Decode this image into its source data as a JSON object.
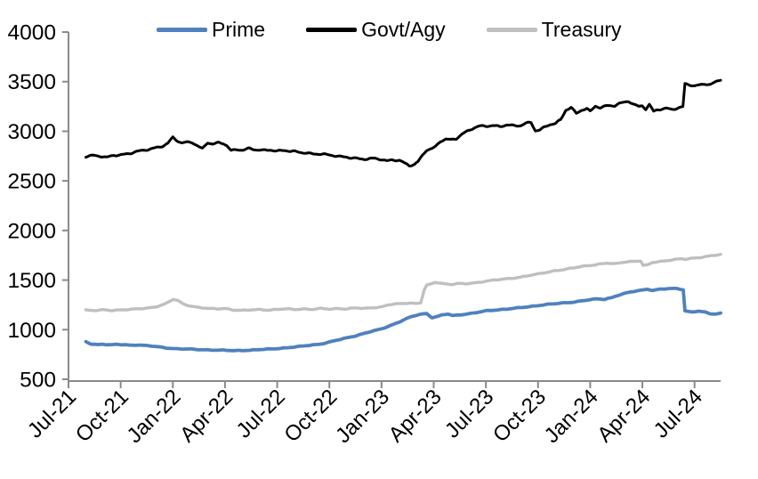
{
  "chart_data": {
    "type": "line",
    "title": "",
    "xlabel": "",
    "ylabel": "",
    "grid": false,
    "legend_position": "top",
    "axis_color": "#8a8a8a",
    "text_color": "#000000",
    "ylim": [
      500,
      4000
    ],
    "y_ticks": [
      "500",
      "1000",
      "1500",
      "2000",
      "2500",
      "3000",
      "3500",
      "4000"
    ],
    "y_tick_values": [
      500,
      1000,
      1500,
      2000,
      2500,
      3000,
      3500,
      4000
    ],
    "x_tick_labels": [
      "Jul-21",
      "Oct-21",
      "Jan-22",
      "Apr-22",
      "Jul-22",
      "Oct-22",
      "Jan-23",
      "Apr-23",
      "Jul-23",
      "Oct-23",
      "Jan-24",
      "Apr-24",
      "Jul-24"
    ],
    "x_unit": "months since Jul-2021 (ticks every 3 months)",
    "x_range": [
      0,
      37.5
    ],
    "series": [
      {
        "name": "Prime",
        "color": "#4F81BD",
        "stroke_width": 3.8,
        "noise_amp": 4,
        "seed": 1,
        "points": [
          [
            1,
            878
          ],
          [
            1.3,
            856
          ],
          [
            1.7,
            850
          ],
          [
            2,
            854
          ],
          [
            2.4,
            846
          ],
          [
            2.8,
            851
          ],
          [
            3.2,
            848
          ],
          [
            3.6,
            843
          ],
          [
            4,
            847
          ],
          [
            4.4,
            840
          ],
          [
            4.8,
            834
          ],
          [
            5.2,
            826
          ],
          [
            5.6,
            817
          ],
          [
            6,
            810
          ],
          [
            6.5,
            806
          ],
          [
            7,
            803
          ],
          [
            7.5,
            799
          ],
          [
            8,
            797
          ],
          [
            8.5,
            794
          ],
          [
            9,
            792
          ],
          [
            9.5,
            789
          ],
          [
            10,
            791
          ],
          [
            10.5,
            794
          ],
          [
            11,
            799
          ],
          [
            11.5,
            804
          ],
          [
            12,
            810
          ],
          [
            12.5,
            817
          ],
          [
            13,
            825
          ],
          [
            13.5,
            835
          ],
          [
            14,
            846
          ],
          [
            14.4,
            853
          ],
          [
            14.7,
            863
          ],
          [
            15,
            874
          ],
          [
            15.5,
            897
          ],
          [
            16,
            918
          ],
          [
            16.5,
            938
          ],
          [
            17,
            962
          ],
          [
            17.5,
            986
          ],
          [
            18,
            1008
          ],
          [
            18.5,
            1042
          ],
          [
            19,
            1076
          ],
          [
            19.5,
            1116
          ],
          [
            20,
            1146
          ],
          [
            20.3,
            1158
          ],
          [
            20.6,
            1162
          ],
          [
            20.9,
            1122
          ],
          [
            21.2,
            1132
          ],
          [
            21.5,
            1148
          ],
          [
            21.8,
            1158
          ],
          [
            22.1,
            1142
          ],
          [
            22.5,
            1150
          ],
          [
            22.9,
            1158
          ],
          [
            23.3,
            1168
          ],
          [
            23.7,
            1180
          ],
          [
            24,
            1190
          ],
          [
            24.5,
            1198
          ],
          [
            25,
            1205
          ],
          [
            25.5,
            1213
          ],
          [
            26,
            1222
          ],
          [
            26.5,
            1232
          ],
          [
            27,
            1244
          ],
          [
            27.5,
            1254
          ],
          [
            28,
            1262
          ],
          [
            28.5,
            1270
          ],
          [
            29,
            1278
          ],
          [
            29.5,
            1290
          ],
          [
            30,
            1302
          ],
          [
            30.4,
            1310
          ],
          [
            30.8,
            1306
          ],
          [
            31.2,
            1322
          ],
          [
            31.6,
            1346
          ],
          [
            32,
            1366
          ],
          [
            32.5,
            1386
          ],
          [
            33,
            1400
          ],
          [
            33.3,
            1410
          ],
          [
            33.6,
            1395
          ],
          [
            34,
            1408
          ],
          [
            34.5,
            1413
          ],
          [
            35,
            1416
          ],
          [
            35.2,
            1409
          ],
          [
            35.35,
            1402
          ],
          [
            35.45,
            1190
          ],
          [
            35.8,
            1178
          ],
          [
            36.2,
            1186
          ],
          [
            36.6,
            1176
          ],
          [
            36.9,
            1162
          ],
          [
            37.2,
            1157
          ],
          [
            37.5,
            1167
          ]
        ]
      },
      {
        "name": "Govt/Agy",
        "color": "#000000",
        "stroke_width": 3.0,
        "noise_amp": 12,
        "seed": 2,
        "points": [
          [
            1,
            2748
          ],
          [
            1.4,
            2760
          ],
          [
            1.8,
            2750
          ],
          [
            2.2,
            2732
          ],
          [
            2.6,
            2756
          ],
          [
            3,
            2762
          ],
          [
            3.4,
            2776
          ],
          [
            3.8,
            2792
          ],
          [
            4.2,
            2802
          ],
          [
            4.6,
            2814
          ],
          [
            5,
            2832
          ],
          [
            5.4,
            2854
          ],
          [
            5.7,
            2880
          ],
          [
            6,
            2938
          ],
          [
            6.2,
            2910
          ],
          [
            6.5,
            2878
          ],
          [
            6.8,
            2886
          ],
          [
            7.1,
            2890
          ],
          [
            7.4,
            2858
          ],
          [
            7.7,
            2826
          ],
          [
            8,
            2888
          ],
          [
            8.3,
            2868
          ],
          [
            8.6,
            2880
          ],
          [
            8.9,
            2876
          ],
          [
            9.1,
            2856
          ],
          [
            9.35,
            2806
          ],
          [
            9.7,
            2820
          ],
          [
            10,
            2812
          ],
          [
            10.4,
            2824
          ],
          [
            10.8,
            2810
          ],
          [
            11.2,
            2806
          ],
          [
            11.6,
            2816
          ],
          [
            12,
            2802
          ],
          [
            12.4,
            2808
          ],
          [
            12.8,
            2794
          ],
          [
            13.2,
            2790
          ],
          [
            13.6,
            2784
          ],
          [
            14,
            2776
          ],
          [
            14.4,
            2772
          ],
          [
            14.8,
            2762
          ],
          [
            15.2,
            2754
          ],
          [
            15.6,
            2746
          ],
          [
            16,
            2744
          ],
          [
            16.4,
            2730
          ],
          [
            16.8,
            2718
          ],
          [
            17.2,
            2716
          ],
          [
            17.6,
            2728
          ],
          [
            18,
            2720
          ],
          [
            18.3,
            2702
          ],
          [
            18.6,
            2712
          ],
          [
            19,
            2704
          ],
          [
            19.3,
            2678
          ],
          [
            19.6,
            2654
          ],
          [
            19.9,
            2668
          ],
          [
            20.1,
            2696
          ],
          [
            20.35,
            2760
          ],
          [
            20.6,
            2814
          ],
          [
            20.9,
            2822
          ],
          [
            21.1,
            2840
          ],
          [
            21.4,
            2898
          ],
          [
            21.7,
            2920
          ],
          [
            22,
            2916
          ],
          [
            22.3,
            2930
          ],
          [
            22.6,
            2970
          ],
          [
            23,
            3004
          ],
          [
            23.3,
            3030
          ],
          [
            23.6,
            3048
          ],
          [
            24,
            3054
          ],
          [
            24.4,
            3062
          ],
          [
            24.8,
            3048
          ],
          [
            25.2,
            3062
          ],
          [
            25.6,
            3052
          ],
          [
            26,
            3058
          ],
          [
            26.3,
            3084
          ],
          [
            26.6,
            3092
          ],
          [
            26.85,
            3008
          ],
          [
            27.1,
            3012
          ],
          [
            27.4,
            3040
          ],
          [
            27.7,
            3066
          ],
          [
            28,
            3078
          ],
          [
            28.3,
            3118
          ],
          [
            28.6,
            3218
          ],
          [
            28.9,
            3242
          ],
          [
            29.2,
            3178
          ],
          [
            29.5,
            3210
          ],
          [
            29.8,
            3225
          ],
          [
            30,
            3198
          ],
          [
            30.3,
            3256
          ],
          [
            30.6,
            3240
          ],
          [
            31,
            3262
          ],
          [
            31.4,
            3256
          ],
          [
            31.7,
            3275
          ],
          [
            32,
            3294
          ],
          [
            32.2,
            3304
          ],
          [
            32.5,
            3270
          ],
          [
            32.8,
            3254
          ],
          [
            33,
            3262
          ],
          [
            33.2,
            3224
          ],
          [
            33.4,
            3266
          ],
          [
            33.65,
            3198
          ],
          [
            33.85,
            3214
          ],
          [
            34.1,
            3220
          ],
          [
            34.4,
            3230
          ],
          [
            34.7,
            3224
          ],
          [
            35,
            3236
          ],
          [
            35.33,
            3246
          ],
          [
            35.45,
            3478
          ],
          [
            35.7,
            3468
          ],
          [
            36,
            3452
          ],
          [
            36.3,
            3464
          ],
          [
            36.6,
            3480
          ],
          [
            36.9,
            3473
          ],
          [
            37.2,
            3498
          ],
          [
            37.5,
            3522
          ]
        ]
      },
      {
        "name": "Treasury",
        "color": "#BFBFBF",
        "stroke_width": 3.4,
        "noise_amp": 5,
        "seed": 3,
        "points": [
          [
            1,
            1198
          ],
          [
            1.5,
            1193
          ],
          [
            2,
            1199
          ],
          [
            2.5,
            1194
          ],
          [
            3,
            1200
          ],
          [
            3.5,
            1204
          ],
          [
            4,
            1209
          ],
          [
            4.5,
            1216
          ],
          [
            5,
            1230
          ],
          [
            5.5,
            1256
          ],
          [
            5.8,
            1282
          ],
          [
            6,
            1306
          ],
          [
            6.3,
            1292
          ],
          [
            6.6,
            1258
          ],
          [
            7,
            1240
          ],
          [
            7.5,
            1224
          ],
          [
            8,
            1214
          ],
          [
            8.5,
            1209
          ],
          [
            9,
            1214
          ],
          [
            9.5,
            1199
          ],
          [
            10,
            1194
          ],
          [
            10.5,
            1199
          ],
          [
            11,
            1204
          ],
          [
            11.5,
            1198
          ],
          [
            12,
            1204
          ],
          [
            12.5,
            1209
          ],
          [
            13,
            1204
          ],
          [
            13.5,
            1210
          ],
          [
            14,
            1204
          ],
          [
            14.5,
            1213
          ],
          [
            15,
            1208
          ],
          [
            15.5,
            1214
          ],
          [
            16,
            1209
          ],
          [
            16.5,
            1219
          ],
          [
            17,
            1214
          ],
          [
            17.5,
            1222
          ],
          [
            18,
            1230
          ],
          [
            18.4,
            1250
          ],
          [
            18.8,
            1258
          ],
          [
            19.2,
            1264
          ],
          [
            19.6,
            1269
          ],
          [
            20,
            1264
          ],
          [
            20.25,
            1271
          ],
          [
            20.45,
            1398
          ],
          [
            20.6,
            1448
          ],
          [
            20.9,
            1462
          ],
          [
            21.1,
            1477
          ],
          [
            21.4,
            1469
          ],
          [
            21.7,
            1461
          ],
          [
            22,
            1457
          ],
          [
            22.4,
            1466
          ],
          [
            22.8,
            1461
          ],
          [
            23.2,
            1468
          ],
          [
            23.6,
            1476
          ],
          [
            24,
            1491
          ],
          [
            24.5,
            1501
          ],
          [
            25,
            1508
          ],
          [
            25.5,
            1517
          ],
          [
            26,
            1531
          ],
          [
            26.5,
            1547
          ],
          [
            27,
            1561
          ],
          [
            27.5,
            1577
          ],
          [
            28,
            1596
          ],
          [
            28.5,
            1607
          ],
          [
            29,
            1621
          ],
          [
            29.5,
            1637
          ],
          [
            30,
            1648
          ],
          [
            30.5,
            1661
          ],
          [
            31,
            1671
          ],
          [
            31.4,
            1662
          ],
          [
            31.7,
            1673
          ],
          [
            32,
            1683
          ],
          [
            32.5,
            1690
          ],
          [
            32.9,
            1694
          ],
          [
            33.05,
            1646
          ],
          [
            33.3,
            1652
          ],
          [
            33.6,
            1677
          ],
          [
            34,
            1687
          ],
          [
            34.4,
            1697
          ],
          [
            34.8,
            1707
          ],
          [
            35.2,
            1713
          ],
          [
            35.5,
            1709
          ],
          [
            35.8,
            1717
          ],
          [
            36.2,
            1725
          ],
          [
            36.6,
            1737
          ],
          [
            37,
            1747
          ],
          [
            37.5,
            1757
          ]
        ]
      }
    ]
  }
}
